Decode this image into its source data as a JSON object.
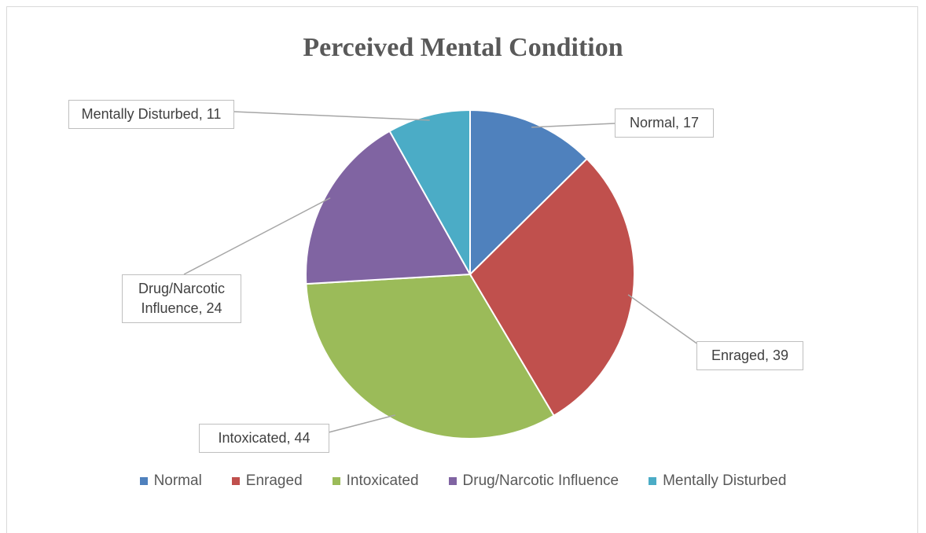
{
  "chart_data": {
    "type": "pie",
    "title": "Perceived Mental Condition",
    "categories": [
      "Normal",
      "Enraged",
      "Intoxicated",
      "Drug/Narcotic Influence",
      "Mentally Disturbed"
    ],
    "values": [
      17,
      39,
      44,
      24,
      11
    ],
    "value_labels": [
      "Normal, 17",
      "Enraged, 39",
      "Intoxicated, 44",
      "Drug/Narcotic Influence, 24",
      "Mentally Disturbed, 11"
    ],
    "colors": [
      "#4f81bd",
      "#c0504d",
      "#9bbb59",
      "#8064a2",
      "#4bacc6"
    ],
    "legend": "bottom"
  }
}
